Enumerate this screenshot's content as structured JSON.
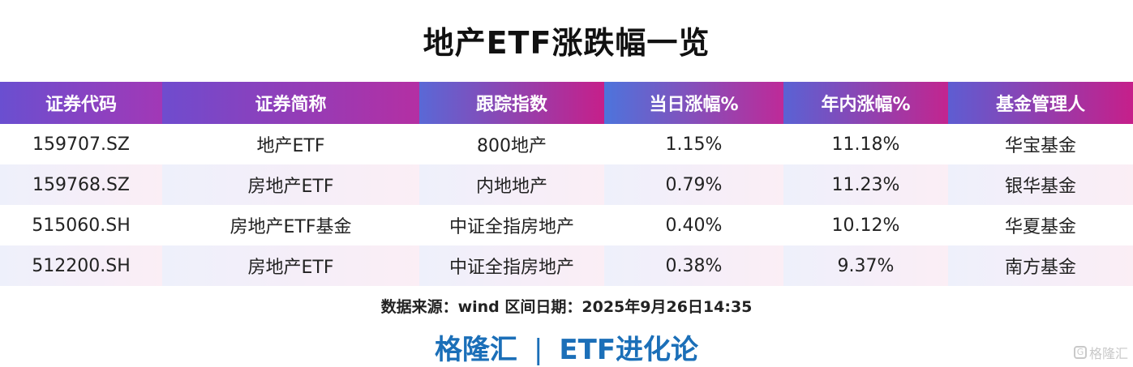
{
  "title": "地产ETF涨跌幅一览",
  "table": {
    "headers": [
      "证券代码",
      "证券简称",
      "跟踪指数",
      "当日涨幅%",
      "年内涨幅%",
      "基金管理人"
    ],
    "rows": [
      [
        "159707.SZ",
        "地产ETF",
        "800地产",
        "1.15%",
        "11.18%",
        "华宝基金"
      ],
      [
        "159768.SZ",
        "房地产ETF",
        "内地地产",
        "0.79%",
        "11.23%",
        "银华基金"
      ],
      [
        "515060.SH",
        "房地产ETF基金",
        "中证全指房地产",
        "0.40%",
        "10.12%",
        "华夏基金"
      ],
      [
        "512200.SH",
        "房地产ETF",
        "中证全指房地产",
        "0.38%",
        "9.37%",
        "南方基金"
      ]
    ]
  },
  "footer": {
    "source": "数据来源：wind 区间日期：2025年9月26日14:35",
    "brand_left": "格隆汇",
    "brand_sep": "|",
    "brand_right": "ETF进化论"
  },
  "watermark": {
    "icon": "G",
    "text": "格隆汇"
  },
  "colors": {
    "positive": "#e0141e",
    "brand_blue": "#1b6fb8"
  }
}
